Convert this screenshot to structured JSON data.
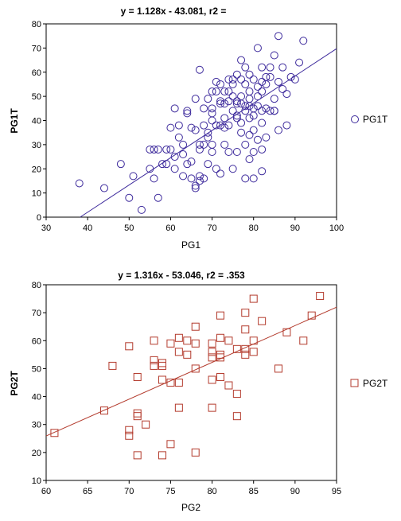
{
  "chart_data": [
    {
      "type": "scatter",
      "title": "y = 1.128x - 43.081, r2 =",
      "xlabel": "PG1",
      "ylabel": "PG1T",
      "xlim": [
        30,
        100
      ],
      "ylim": [
        0,
        80
      ],
      "xticks": [
        "30",
        "40",
        "50",
        "60",
        "70",
        "80",
        "90",
        "100"
      ],
      "yticks": [
        "0",
        "10",
        "20",
        "30",
        "40",
        "50",
        "60",
        "70",
        "80"
      ],
      "grid": false,
      "legend_position": "right",
      "color": "#3d2a9c",
      "marker": "circle",
      "regression": {
        "slope": 1.128,
        "intercept": -43.081
      },
      "series": [
        {
          "name": "PG1T",
          "x": [
            38,
            44,
            48,
            50,
            51,
            53,
            55,
            55,
            56,
            56,
            57,
            58,
            59,
            60,
            61,
            61,
            62,
            63,
            63,
            64,
            64,
            65,
            65,
            66,
            66,
            66,
            67,
            67,
            67,
            68,
            68,
            68,
            69,
            69,
            69,
            70,
            70,
            70,
            70,
            71,
            71,
            71,
            72,
            72,
            72,
            72,
            73,
            73,
            73,
            74,
            74,
            74,
            74,
            75,
            75,
            75,
            75,
            76,
            76,
            76,
            76,
            77,
            77,
            77,
            77,
            77,
            78,
            78,
            78,
            78,
            78,
            79,
            79,
            79,
            79,
            79,
            80,
            80,
            80,
            80,
            80,
            81,
            81,
            81,
            81,
            82,
            82,
            82,
            82,
            82,
            83,
            83,
            83,
            84,
            84,
            85,
            85,
            86,
            86,
            86,
            87,
            87,
            88,
            89,
            90,
            91,
            92,
            60,
            62,
            65,
            67,
            68,
            70,
            72,
            74,
            76,
            78,
            80,
            82,
            84,
            63,
            66,
            69,
            71,
            73,
            75,
            77,
            79,
            81,
            83,
            85,
            57,
            59,
            61,
            64,
            67,
            70,
            73,
            76,
            79,
            82,
            85,
            88
          ],
          "y": [
            14,
            12,
            22,
            8,
            17,
            3,
            20,
            28,
            16,
            28,
            8,
            22,
            28,
            28,
            45,
            20,
            38,
            30,
            17,
            44,
            22,
            16,
            37,
            12,
            36,
            49,
            28,
            15,
            61,
            45,
            30,
            16,
            49,
            35,
            22,
            45,
            30,
            52,
            27,
            38,
            20,
            56,
            38,
            47,
            55,
            18,
            52,
            41,
            30,
            57,
            48,
            38,
            27,
            55,
            50,
            44,
            20,
            47,
            59,
            41,
            27,
            57,
            65,
            50,
            35,
            47,
            62,
            55,
            44,
            30,
            16,
            49,
            59,
            41,
            34,
            24,
            57,
            45,
            36,
            27,
            16,
            70,
            54,
            46,
            32,
            62,
            52,
            44,
            28,
            19,
            58,
            45,
            33,
            62,
            44,
            67,
            49,
            75,
            56,
            36,
            62,
            53,
            38,
            58,
            57,
            64,
            73,
            37,
            33,
            23,
            17,
            38,
            40,
            48,
            52,
            42,
            46,
            42,
            39,
            58,
            26,
            13,
            33,
            52,
            47,
            57,
            39,
            46,
            50,
            55,
            44,
            28,
            22,
            25,
            43,
            30,
            43,
            37,
            48,
            52,
            56,
            44,
            51
          ]
        }
      ]
    },
    {
      "type": "scatter",
      "title": "y = 1.316x - 53.046, r2 = .353",
      "xlabel": "PG2",
      "ylabel": "PG2T",
      "xlim": [
        60,
        95
      ],
      "ylim": [
        10,
        80
      ],
      "xticks": [
        "60",
        "65",
        "70",
        "75",
        "80",
        "85",
        "90",
        "95"
      ],
      "yticks": [
        "10",
        "20",
        "30",
        "40",
        "50",
        "60",
        "70",
        "80"
      ],
      "grid": false,
      "legend_position": "right",
      "color": "#b33a2c",
      "marker": "square",
      "regression": {
        "slope": 1.316,
        "intercept": -53.046
      },
      "series": [
        {
          "name": "PG2T",
          "x": [
            61,
            67,
            68,
            70,
            70,
            70,
            71,
            71,
            71,
            71,
            72,
            73,
            73,
            73,
            74,
            74,
            74,
            74,
            75,
            75,
            75,
            76,
            76,
            76,
            76,
            77,
            77,
            78,
            78,
            78,
            78,
            80,
            80,
            80,
            80,
            80,
            81,
            81,
            81,
            81,
            81,
            82,
            82,
            83,
            83,
            83,
            84,
            84,
            84,
            84,
            85,
            85,
            85,
            86,
            88,
            89,
            91,
            92,
            93
          ],
          "y": [
            27,
            35,
            51,
            58,
            28,
            26,
            19,
            34,
            33,
            47,
            30,
            60,
            53,
            51,
            52,
            51,
            46,
            19,
            59,
            23,
            45,
            61,
            56,
            36,
            45,
            60,
            55,
            65,
            59,
            50,
            20,
            59,
            56,
            54,
            46,
            36,
            69,
            61,
            55,
            47,
            54,
            44,
            60,
            57,
            41,
            33,
            70,
            57,
            55,
            64,
            75,
            60,
            56,
            67,
            50,
            63,
            60,
            69,
            76
          ]
        }
      ]
    }
  ]
}
